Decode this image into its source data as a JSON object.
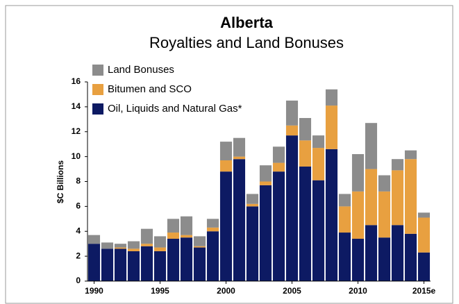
{
  "chart_data": {
    "type": "stacked_bar",
    "title": "Alberta",
    "subtitle": "Royalties and Land Bonuses",
    "y_label": "$C Billions",
    "categories": [
      "1990",
      null,
      null,
      null,
      null,
      "1995",
      null,
      null,
      null,
      null,
      "2000",
      null,
      null,
      null,
      null,
      "2005",
      null,
      null,
      null,
      null,
      "2010",
      null,
      null,
      null,
      null,
      "2015e"
    ],
    "series": [
      {
        "name": "Oil, Liquids and Natural Gas*",
        "color": "#0d1a63",
        "values": [
          3.0,
          2.6,
          2.6,
          2.4,
          2.8,
          2.4,
          3.4,
          3.5,
          2.7,
          4.0,
          8.8,
          9.8,
          6.0,
          7.7,
          8.8,
          11.7,
          9.2,
          8.1,
          10.6,
          3.9,
          3.4,
          4.5,
          3.5,
          4.5,
          3.8,
          2.3
        ]
      },
      {
        "name": "Bitumen and SCO",
        "color": "#e8a040",
        "values": [
          0,
          0,
          0.1,
          0.2,
          0.2,
          0.3,
          0.5,
          0.2,
          0.1,
          0.3,
          0.9,
          0.2,
          0.2,
          0.3,
          0.7,
          0.8,
          2.1,
          2.6,
          3.5,
          2.1,
          3.8,
          4.5,
          3.7,
          4.4,
          6.0,
          2.8
        ]
      },
      {
        "name": "Land Bonuses",
        "color": "#8c8c8c",
        "values": [
          0.7,
          0.5,
          0.3,
          0.6,
          1.2,
          0.9,
          1.1,
          1.5,
          0.8,
          0.7,
          1.5,
          1.5,
          0.8,
          1.3,
          1.3,
          2.0,
          1.8,
          1.0,
          1.3,
          1.0,
          3.0,
          3.7,
          1.3,
          0.9,
          0.7,
          0.4
        ]
      }
    ],
    "ylim": [
      0,
      16
    ],
    "yticks": [
      0,
      2,
      4,
      6,
      8,
      10,
      12,
      14,
      16
    ]
  }
}
